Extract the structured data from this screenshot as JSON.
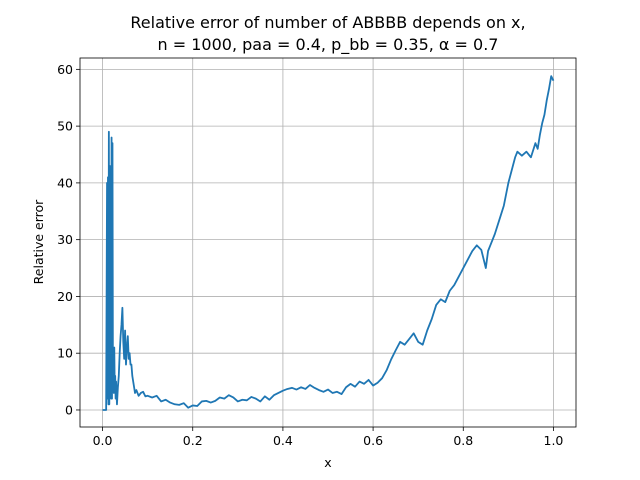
{
  "chart_data": {
    "type": "line",
    "title_line1": "Relative error of number of ABBBB depends on x,",
    "title_line2": "n = 1000, paa = 0.4, p_bb = 0.35, α = 0.7",
    "xlabel": "x",
    "ylabel": "Relative error",
    "xlim": [
      -0.05,
      1.05
    ],
    "ylim": [
      -3,
      62
    ],
    "xticks": [
      0.0,
      0.2,
      0.4,
      0.6,
      0.8,
      1.0
    ],
    "xtick_labels": [
      "0.0",
      "0.2",
      "0.4",
      "0.6",
      "0.8",
      "1.0"
    ],
    "yticks": [
      0,
      10,
      20,
      30,
      40,
      50,
      60
    ],
    "ytick_labels": [
      "0",
      "10",
      "20",
      "30",
      "40",
      "50",
      "60"
    ],
    "grid": true,
    "series": [
      {
        "color": "#1f77b4",
        "x": [
          0.0,
          0.008,
          0.01,
          0.011,
          0.012,
          0.013,
          0.014,
          0.015,
          0.016,
          0.017,
          0.018,
          0.019,
          0.02,
          0.021,
          0.022,
          0.023,
          0.024,
          0.025,
          0.026,
          0.027,
          0.028,
          0.029,
          0.03,
          0.032,
          0.034,
          0.036,
          0.038,
          0.04,
          0.042,
          0.044,
          0.046,
          0.048,
          0.05,
          0.052,
          0.054,
          0.056,
          0.058,
          0.06,
          0.062,
          0.064,
          0.066,
          0.068,
          0.07,
          0.072,
          0.075,
          0.08,
          0.085,
          0.09,
          0.095,
          0.1,
          0.11,
          0.12,
          0.13,
          0.14,
          0.15,
          0.16,
          0.17,
          0.18,
          0.19,
          0.2,
          0.21,
          0.22,
          0.23,
          0.24,
          0.25,
          0.26,
          0.27,
          0.28,
          0.29,
          0.3,
          0.31,
          0.32,
          0.33,
          0.34,
          0.35,
          0.36,
          0.37,
          0.38,
          0.39,
          0.4,
          0.41,
          0.42,
          0.43,
          0.44,
          0.45,
          0.46,
          0.47,
          0.48,
          0.49,
          0.5,
          0.51,
          0.52,
          0.53,
          0.54,
          0.55,
          0.56,
          0.57,
          0.58,
          0.59,
          0.6,
          0.61,
          0.62,
          0.63,
          0.64,
          0.65,
          0.66,
          0.67,
          0.68,
          0.69,
          0.7,
          0.71,
          0.72,
          0.73,
          0.74,
          0.75,
          0.76,
          0.77,
          0.78,
          0.79,
          0.8,
          0.81,
          0.82,
          0.83,
          0.84,
          0.85,
          0.855,
          0.86,
          0.865,
          0.87,
          0.88,
          0.89,
          0.9,
          0.905,
          0.91,
          0.915,
          0.92,
          0.93,
          0.94,
          0.95,
          0.96,
          0.965,
          0.97,
          0.975,
          0.98,
          0.985,
          0.99,
          0.995,
          1.0
        ],
        "y": [
          0.0,
          0.0,
          40.0,
          2.0,
          41.0,
          1.0,
          49.0,
          1.0,
          43.0,
          5.0,
          42.0,
          2.0,
          48.0,
          2.0,
          47.0,
          5.0,
          11.0,
          3.0,
          11.0,
          4.0,
          6.0,
          2.0,
          5.0,
          1.0,
          4.0,
          6.0,
          10.0,
          13.0,
          15.0,
          18.0,
          12.0,
          9.0,
          14.0,
          8.0,
          11.0,
          13.0,
          9.0,
          10.0,
          8.0,
          8.0,
          6.0,
          5.0,
          4.0,
          3.0,
          3.5,
          2.5,
          3.0,
          3.2,
          2.4,
          2.5,
          2.2,
          2.5,
          1.5,
          1.8,
          1.3,
          1.0,
          0.9,
          1.2,
          0.4,
          0.8,
          0.7,
          1.5,
          1.6,
          1.3,
          1.6,
          2.2,
          2.0,
          2.6,
          2.2,
          1.5,
          1.8,
          1.7,
          2.3,
          2.0,
          1.5,
          2.4,
          1.8,
          2.6,
          3.0,
          3.4,
          3.7,
          3.9,
          3.6,
          4.0,
          3.7,
          4.4,
          3.9,
          3.5,
          3.2,
          3.6,
          3.0,
          3.2,
          2.8,
          4.0,
          4.6,
          4.1,
          5.0,
          4.6,
          5.3,
          4.3,
          4.8,
          5.6,
          7.0,
          8.9,
          10.5,
          12.0,
          11.5,
          12.5,
          13.5,
          12.0,
          11.5,
          14.0,
          16.0,
          18.5,
          19.5,
          19.0,
          21.0,
          22.0,
          23.5,
          25.0,
          26.5,
          28.0,
          29.0,
          28.2,
          25.0,
          28.0,
          29.0,
          30.0,
          31.0,
          33.5,
          36.0,
          40.0,
          41.5,
          43.0,
          44.5,
          45.5,
          44.8,
          45.5,
          44.5,
          47.0,
          46.0,
          48.5,
          50.5,
          52.0,
          54.5,
          56.5,
          58.8,
          58.0
        ]
      }
    ]
  }
}
